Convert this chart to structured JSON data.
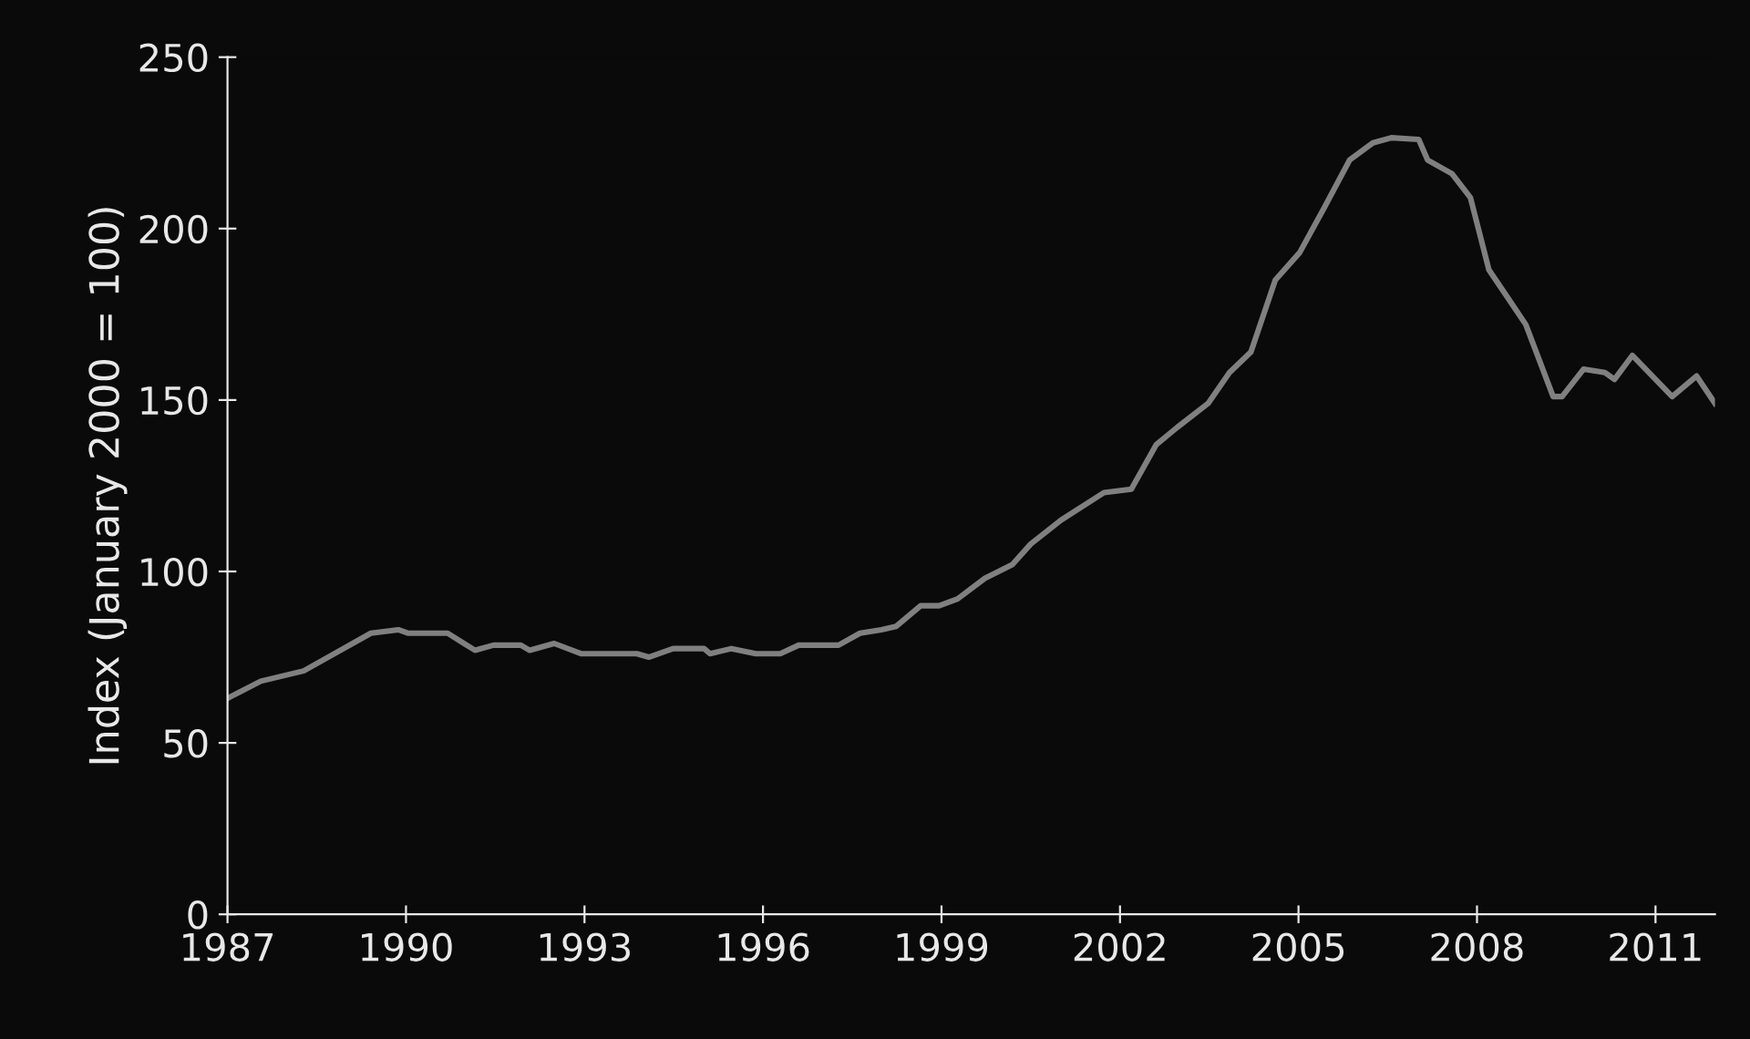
{
  "chart_data": {
    "type": "line",
    "ylabel": "Index (January 2000 = 100)",
    "xlim": [
      1987,
      2012
    ],
    "xticks": [
      1987,
      1990,
      1993,
      1996,
      1999,
      2002,
      2005,
      2008,
      2011
    ],
    "ylim": [
      0,
      250
    ],
    "yticks": [
      0,
      50,
      100,
      150,
      200,
      250
    ],
    "grid": false,
    "legend": false,
    "marker": "none",
    "line_style": "solid",
    "series": [
      {
        "color": "#808080",
        "x": [
          1987.0,
          1987.56,
          1988.28,
          1988.69,
          1989.41,
          1989.87,
          1990.03,
          1990.7,
          1991.16,
          1991.47,
          1991.93,
          1992.08,
          1992.49,
          1992.95,
          1993.88,
          1994.08,
          1994.49,
          1995.01,
          1995.11,
          1995.47,
          1995.88,
          1996.29,
          1996.6,
          1997.27,
          1997.63,
          1997.99,
          1998.24,
          1998.65,
          1998.96,
          1999.27,
          1999.73,
          2000.19,
          2000.5,
          2001.01,
          2001.73,
          2002.19,
          2002.61,
          2002.96,
          2003.48,
          2003.84,
          2004.2,
          2004.61,
          2005.02,
          2005.43,
          2005.86,
          2006.25,
          2006.56,
          2007.02,
          2007.17,
          2007.58,
          2007.89,
          2008.2,
          2008.51,
          2008.82,
          2009.28,
          2009.43,
          2009.79,
          2010.15,
          2010.31,
          2010.61,
          2011.28,
          2011.69,
          2012.0
        ],
        "values": [
          63,
          68,
          71,
          75,
          82,
          83,
          82,
          82,
          77,
          78.5,
          78.5,
          77,
          79,
          76,
          76,
          75,
          77.5,
          77.5,
          76,
          77.5,
          76,
          76,
          78.5,
          78.5,
          82,
          83,
          84,
          90,
          90,
          92,
          98,
          102,
          108,
          115,
          123,
          124,
          137,
          142,
          149,
          158,
          164,
          185,
          193,
          206,
          220,
          225,
          226.5,
          226,
          220,
          216,
          209,
          188,
          180,
          172,
          151,
          151,
          159,
          158,
          156,
          163,
          151,
          157,
          149
        ]
      }
    ]
  }
}
